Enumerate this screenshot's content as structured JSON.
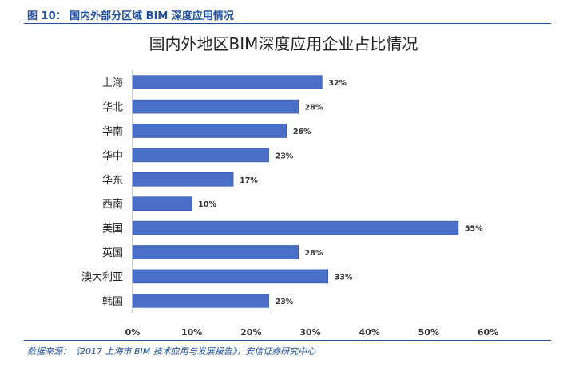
{
  "figure": {
    "label": "图 10：  国内外部分区域 BIM 深度应用情况",
    "source": "数据来源：《2017 上海市 BIM 技术应用与发展报告》，安信证券研究中心"
  },
  "colors": {
    "bar": "#4a6fc9",
    "bar_edge": "#2f4f9e",
    "accent": "#1f4e9a",
    "text": "#222222"
  },
  "chart_data": {
    "type": "bar",
    "orientation": "horizontal",
    "title": "国内外地区BIM深度应用企业占比情况",
    "categories": [
      "上海",
      "华北",
      "华南",
      "华中",
      "华东",
      "西南",
      "美国",
      "英国",
      "澳大利亚",
      "韩国"
    ],
    "values": [
      32,
      28,
      26,
      23,
      17,
      10,
      55,
      28,
      33,
      23
    ],
    "data_labels": [
      "32%",
      "28%",
      "26%",
      "23%",
      "17%",
      "10%",
      "55%",
      "28%",
      "33%",
      "23%"
    ],
    "xlim": [
      0,
      60
    ],
    "x_ticks": [
      0,
      10,
      20,
      30,
      40,
      50,
      60
    ],
    "x_tick_labels": [
      "0%",
      "10%",
      "20%",
      "30%",
      "40%",
      "50%",
      "60%"
    ],
    "grid": false,
    "legend": "none"
  }
}
